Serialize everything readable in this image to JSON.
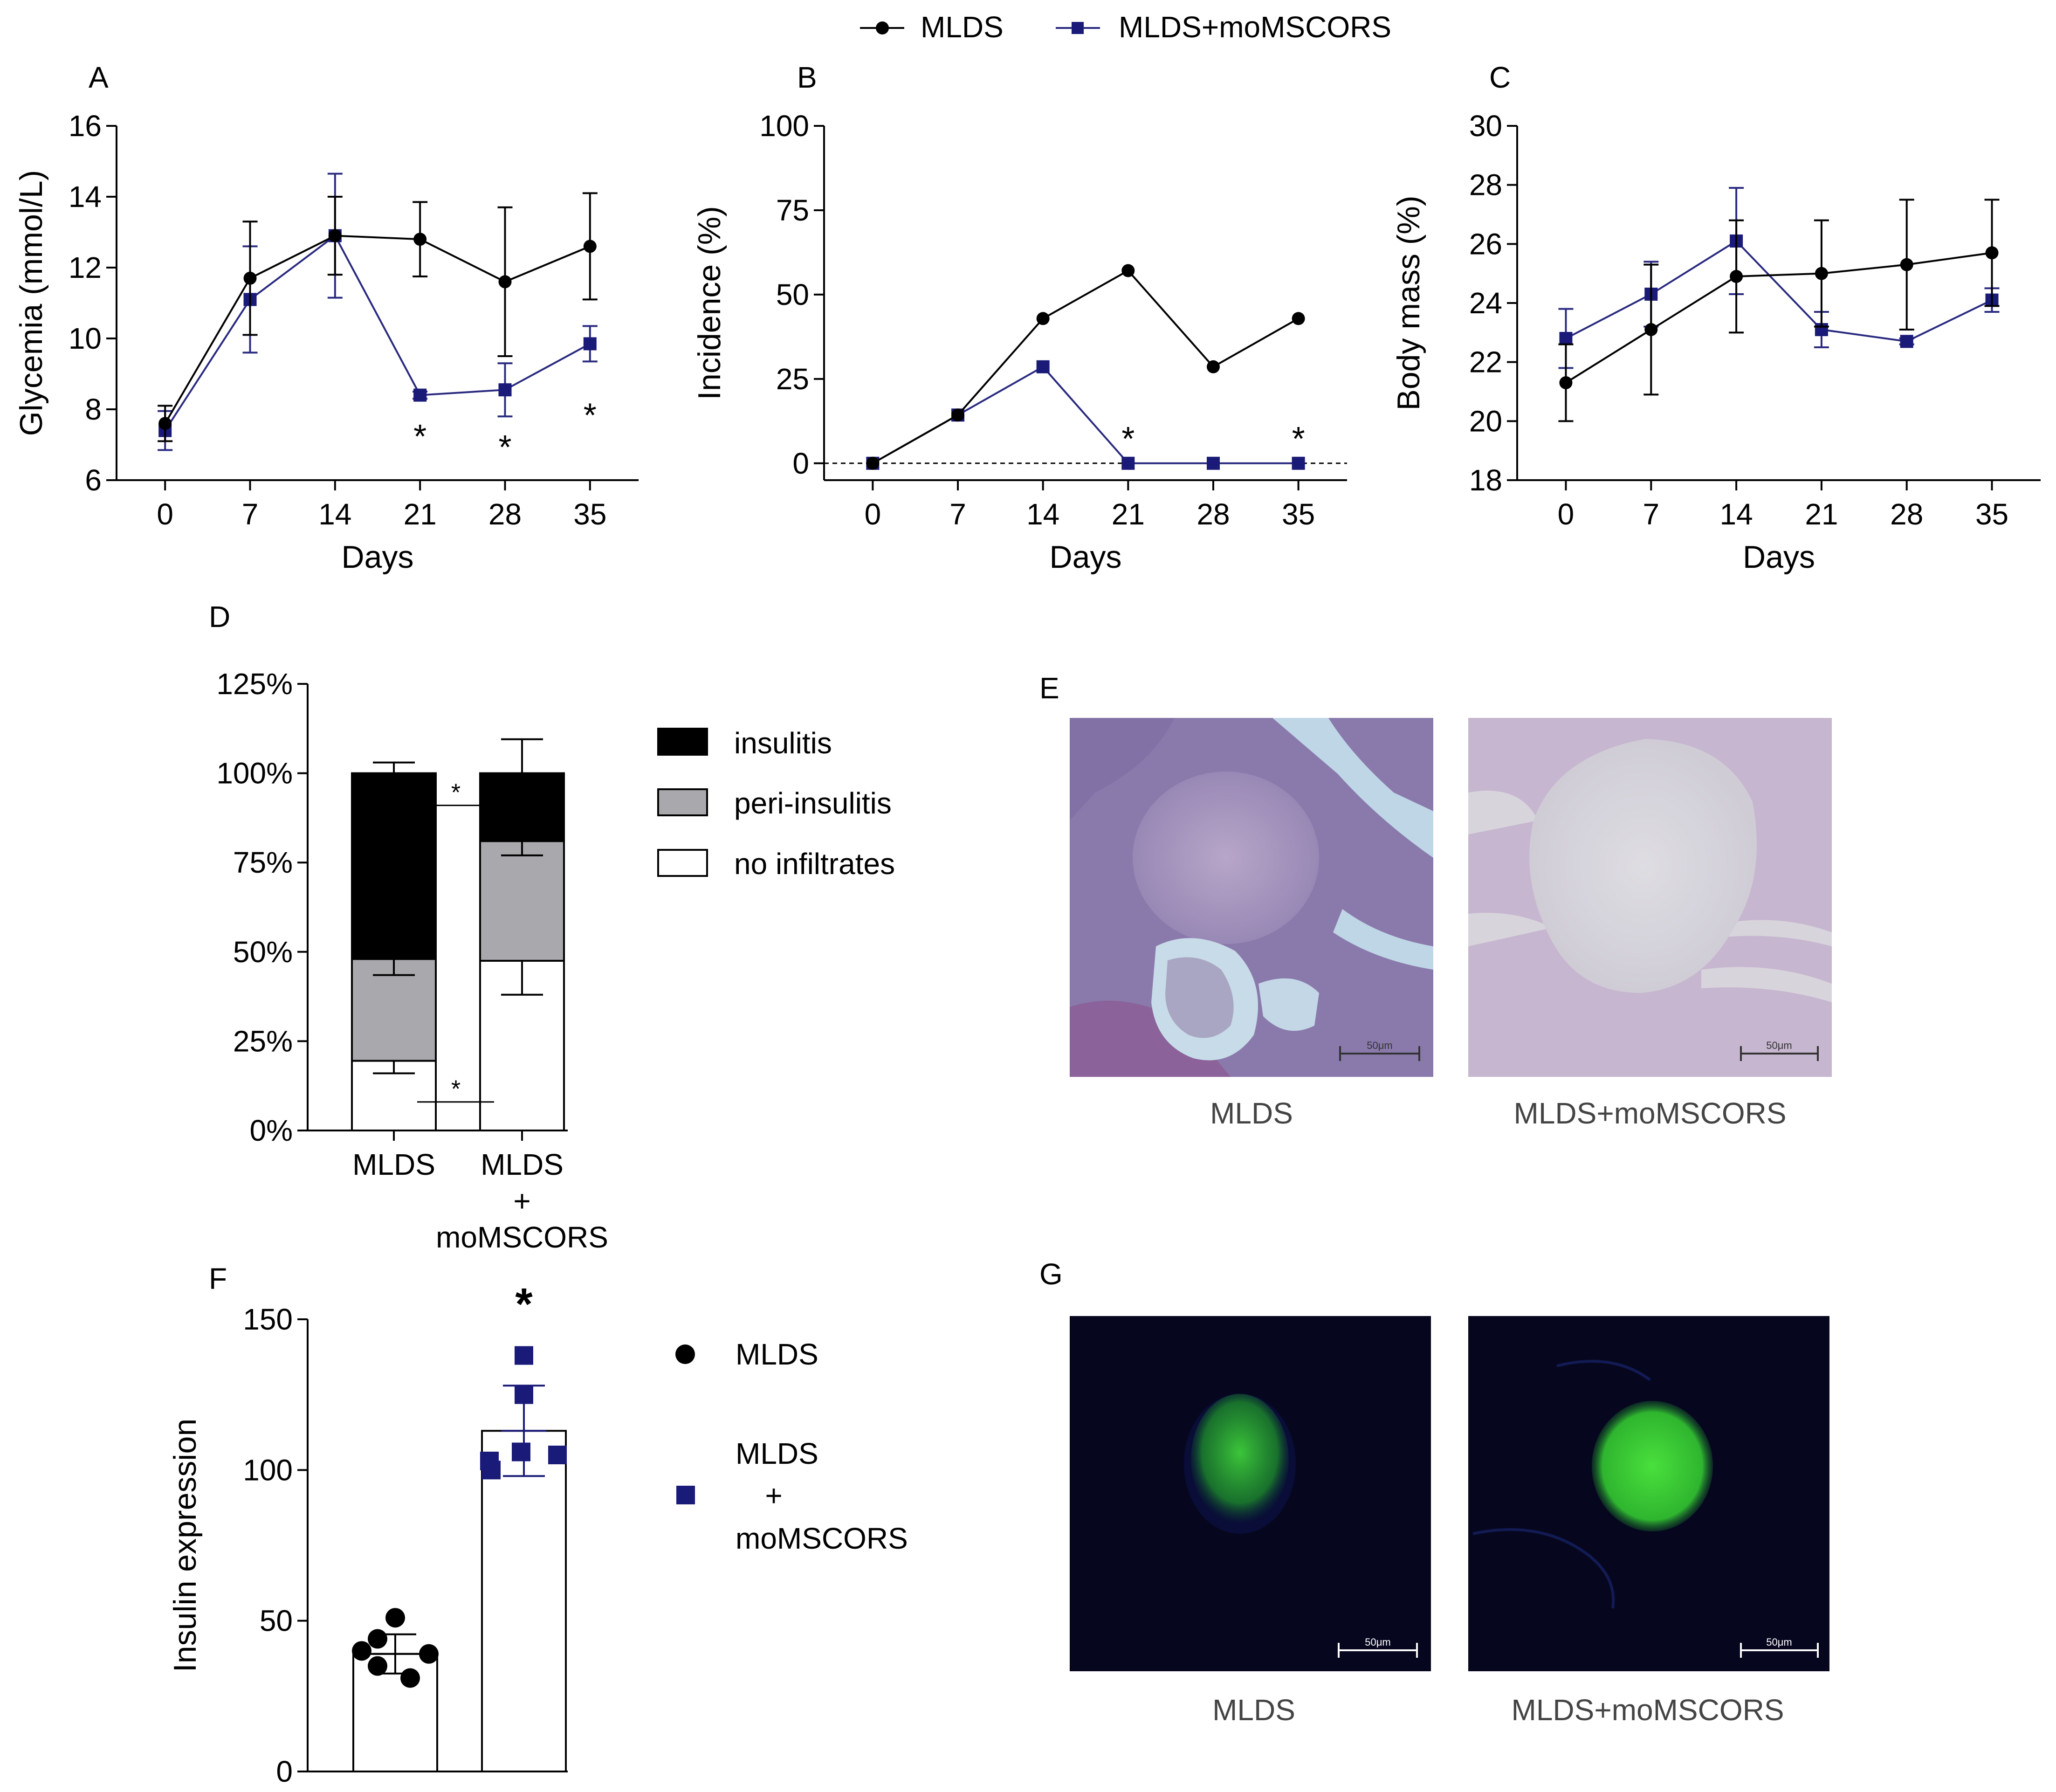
{
  "legend_top": {
    "s1": "MLDS",
    "s2": "MLDS+moMSCORS"
  },
  "colors": {
    "mlds": "#000000",
    "moms": "#1a1a78",
    "gray": "#a9a9ad",
    "line_moms": "#2a2a80"
  },
  "chart_data": [
    {
      "panel": "A",
      "type": "line",
      "xlabel": "Days",
      "ylabel": "Glycemia (mmol/L)",
      "x": [
        0,
        7,
        14,
        21,
        28,
        35
      ],
      "xlim": [
        -4,
        39
      ],
      "ylim": [
        6,
        16
      ],
      "yticks": [
        6,
        8,
        10,
        12,
        14,
        16
      ],
      "series": [
        {
          "name": "MLDS",
          "values": [
            7.6,
            11.7,
            12.9,
            12.8,
            11.6,
            12.6
          ],
          "err": [
            0.5,
            1.6,
            1.1,
            1.05,
            2.1,
            1.5
          ]
        },
        {
          "name": "MLDS+moMSCORS",
          "values": [
            7.4,
            11.1,
            12.9,
            8.4,
            8.55,
            9.85
          ],
          "err": [
            0.55,
            1.5,
            1.75,
            0.1,
            0.75,
            0.5
          ]
        }
      ],
      "significance": [
        {
          "x": 21,
          "y": 7.3,
          "label": "*"
        },
        {
          "x": 28,
          "y": 7.0,
          "label": "*"
        },
        {
          "x": 35,
          "y": 7.9,
          "label": "*"
        }
      ]
    },
    {
      "panel": "B",
      "type": "line",
      "xlabel": "Days",
      "ylabel": "Incidence (%)",
      "x": [
        0,
        7,
        14,
        21,
        28,
        35
      ],
      "xlim": [
        -4,
        39
      ],
      "ylim": [
        -5,
        100
      ],
      "yticks": [
        0,
        25,
        50,
        75,
        100
      ],
      "series": [
        {
          "name": "MLDS",
          "values": [
            0,
            14.3,
            42.9,
            57.1,
            28.6,
            42.9
          ]
        },
        {
          "name": "MLDS+moMSCORS",
          "values": [
            0,
            14.3,
            28.6,
            0,
            0,
            0
          ]
        }
      ],
      "reference_line": 0,
      "significance": [
        {
          "x": 21,
          "y": 8,
          "label": "*"
        },
        {
          "x": 35,
          "y": 8,
          "label": "*"
        }
      ]
    },
    {
      "panel": "C",
      "type": "line",
      "xlabel": "Days",
      "ylabel": "Body mass (%)",
      "x": [
        0,
        7,
        14,
        21,
        28,
        35
      ],
      "xlim": [
        -4,
        39
      ],
      "ylim": [
        18,
        30
      ],
      "yticks": [
        18,
        20,
        22,
        24,
        26,
        28,
        30
      ],
      "series": [
        {
          "name": "MLDS",
          "values": [
            21.3,
            23.1,
            24.9,
            25.0,
            25.3,
            25.7
          ],
          "err": [
            1.3,
            2.2,
            1.9,
            1.8,
            2.2,
            1.8
          ]
        },
        {
          "name": "MLDS+moMSCORS",
          "values": [
            22.8,
            24.3,
            26.1,
            23.1,
            22.7,
            24.1
          ],
          "err": [
            1.0,
            1.1,
            1.8,
            0.6,
            0.1,
            0.4
          ]
        }
      ]
    },
    {
      "panel": "D",
      "type": "bar",
      "stacked": true,
      "categories": [
        "MLDS",
        "MLDS\n+\nmoMSCORS"
      ],
      "category_lines": [
        [
          "MLDS"
        ],
        [
          "MLDS",
          "+",
          "moMSCORS"
        ]
      ],
      "ylim": [
        0,
        125
      ],
      "yticks": [
        0,
        25,
        50,
        75,
        100,
        125
      ],
      "ytick_labels": [
        "0%",
        "25%",
        "50%",
        "75%",
        "100%",
        "125%"
      ],
      "series": [
        {
          "name": "no infiltrates",
          "values": [
            19.5,
            47.5
          ],
          "err": [
            3.5,
            9.5
          ]
        },
        {
          "name": "peri-insulitis",
          "values": [
            28.5,
            33.5
          ],
          "err": [
            4.5,
            4.0
          ]
        },
        {
          "name": "insulitis",
          "values": [
            52,
            19
          ],
          "err": [
            3,
            9.5
          ]
        }
      ],
      "legend": [
        "insulitis",
        "peri-insulitis",
        "no infiltrates"
      ],
      "significance": [
        "*",
        "*"
      ]
    },
    {
      "panel": "F",
      "type": "scatter",
      "ylabel": "Insulin expression",
      "ylim": [
        0,
        150
      ],
      "yticks": [
        0,
        50,
        100,
        150
      ],
      "groups": [
        {
          "name": "MLDS",
          "mean": 39,
          "sd": 6.5,
          "points": [
            51,
            44,
            40,
            39,
            35,
            31
          ]
        },
        {
          "name": "MLDS+moMSCORS",
          "mean": 113,
          "sd": 15,
          "points": [
            138,
            125,
            106,
            105,
            103,
            100
          ]
        }
      ],
      "legend": [
        "MLDS",
        "MLDS\n+\nmoMSCORS"
      ],
      "legend_lines": [
        [
          "MLDS"
        ],
        [
          "MLDS",
          "+",
          "moMSCORS"
        ]
      ],
      "significance": "*"
    }
  ],
  "panel_labels": {
    "A": "A",
    "B": "B",
    "C": "C",
    "D": "D",
    "E": "E",
    "F": "F",
    "G": "G"
  },
  "images": {
    "E": {
      "left_label": "MLDS",
      "right_label": "MLDS+moMSCORS",
      "scale_bar": "50μm"
    },
    "G": {
      "left_label": "MLDS",
      "right_label": "MLDS+moMSCORS",
      "scale_bar": "50μm"
    }
  }
}
